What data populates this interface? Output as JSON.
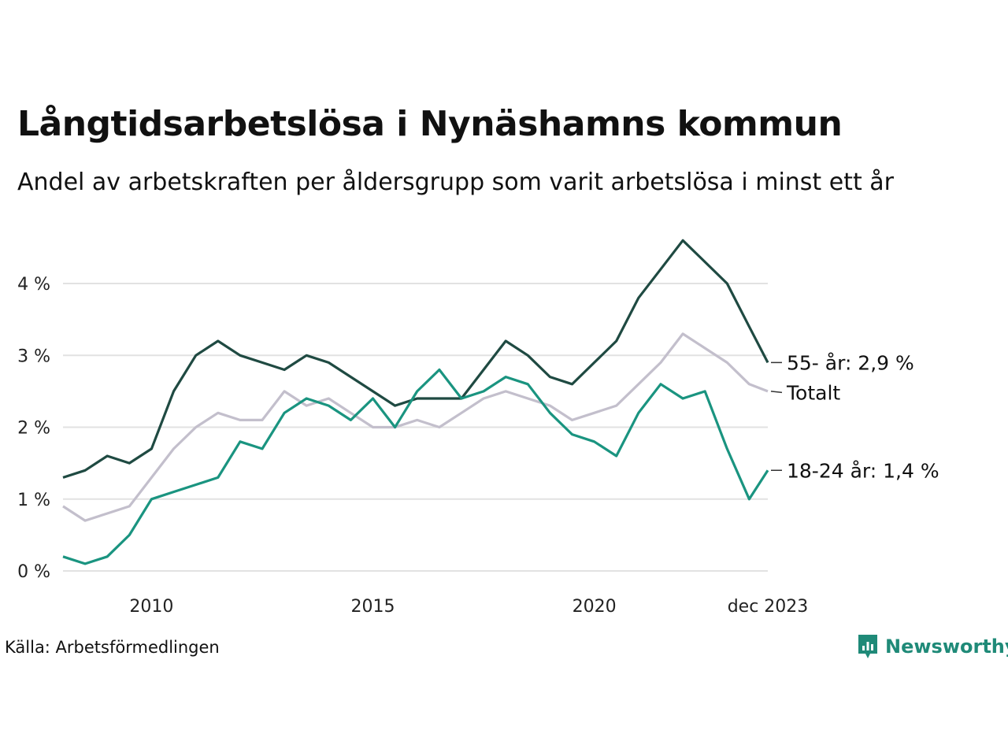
{
  "title": "Långtidsarbetslösa i Nynäshamns kommun",
  "subtitle": "Andel av arbetskraften per åldersgrupp som varit arbetslösa i minst ett år",
  "source": "Källa: Arbetsförmedlingen",
  "brand": "Newsworthy",
  "colors": {
    "series_55": "#1f4a42",
    "series_total": "#c3bfcc",
    "series_18_24": "#1a9480",
    "grid": "#e2e2e2",
    "brand": "#1f8a78"
  },
  "chart_data": {
    "type": "line",
    "title": "Långtidsarbetslösa i Nynäshamns kommun",
    "xlabel": "",
    "ylabel": "",
    "xlim": [
      2008.0,
      2023.92
    ],
    "ylim": [
      0,
      4.5
    ],
    "y_ticks": [
      0,
      1,
      2,
      3,
      4
    ],
    "y_tick_labels": [
      "0 %",
      "1 %",
      "2 %",
      "3 %",
      "4 %"
    ],
    "x_ticks": [
      2010,
      2015,
      2020,
      2023.92
    ],
    "x_tick_labels": [
      "2010",
      "2015",
      "2020",
      "dec 2023"
    ],
    "series": [
      {
        "name": "Totalt",
        "label": "Totalt",
        "color": "#c3bfcc",
        "x": [
          2008.0,
          2008.5,
          2009.0,
          2009.5,
          2010.0,
          2010.5,
          2011.0,
          2011.5,
          2012.0,
          2012.5,
          2013.0,
          2013.5,
          2014.0,
          2014.5,
          2015.0,
          2015.5,
          2016.0,
          2016.5,
          2017.0,
          2017.5,
          2018.0,
          2018.5,
          2019.0,
          2019.5,
          2020.0,
          2020.5,
          2021.0,
          2021.5,
          2022.0,
          2022.5,
          2023.0,
          2023.5,
          2023.92
        ],
        "values": [
          0.9,
          0.7,
          0.8,
          0.9,
          1.3,
          1.7,
          2.0,
          2.2,
          2.1,
          2.1,
          2.5,
          2.3,
          2.4,
          2.2,
          2.0,
          2.0,
          2.1,
          2.0,
          2.2,
          2.4,
          2.5,
          2.4,
          2.3,
          2.1,
          2.2,
          2.3,
          2.6,
          2.9,
          3.3,
          3.1,
          2.9,
          2.6,
          2.5
        ]
      },
      {
        "name": "55- år",
        "label": "55- år: 2,9 %",
        "color": "#1f4a42",
        "x": [
          2008.0,
          2008.5,
          2009.0,
          2009.5,
          2010.0,
          2010.5,
          2011.0,
          2011.5,
          2012.0,
          2012.5,
          2013.0,
          2013.5,
          2014.0,
          2014.5,
          2015.0,
          2015.5,
          2016.0,
          2016.5,
          2017.0,
          2017.5,
          2018.0,
          2018.5,
          2019.0,
          2019.5,
          2020.0,
          2020.5,
          2021.0,
          2021.5,
          2022.0,
          2022.5,
          2023.0,
          2023.5,
          2023.92
        ],
        "values": [
          1.3,
          1.4,
          1.6,
          1.5,
          1.7,
          2.5,
          3.0,
          3.2,
          3.0,
          2.9,
          2.8,
          3.0,
          2.9,
          2.7,
          2.5,
          2.3,
          2.4,
          2.4,
          2.4,
          2.8,
          3.2,
          3.0,
          2.7,
          2.6,
          2.9,
          3.2,
          3.8,
          4.2,
          4.6,
          4.3,
          4.0,
          3.4,
          2.9
        ]
      },
      {
        "name": "18-24 år",
        "label": "18-24 år: 1,4 %",
        "color": "#1a9480",
        "x": [
          2008.0,
          2008.5,
          2009.0,
          2009.5,
          2010.0,
          2010.5,
          2011.0,
          2011.5,
          2012.0,
          2012.5,
          2013.0,
          2013.5,
          2014.0,
          2014.5,
          2015.0,
          2015.5,
          2016.0,
          2016.5,
          2017.0,
          2017.5,
          2018.0,
          2018.5,
          2019.0,
          2019.5,
          2020.0,
          2020.5,
          2021.0,
          2021.5,
          2022.0,
          2022.5,
          2023.0,
          2023.5,
          2023.92
        ],
        "values": [
          0.2,
          0.1,
          0.2,
          0.5,
          1.0,
          1.1,
          1.2,
          1.3,
          1.8,
          1.7,
          2.2,
          2.4,
          2.3,
          2.1,
          2.4,
          2.0,
          2.5,
          2.8,
          2.4,
          2.5,
          2.7,
          2.6,
          2.2,
          1.9,
          1.8,
          1.6,
          2.2,
          2.6,
          2.4,
          2.5,
          1.7,
          1.0,
          1.4
        ]
      }
    ]
  }
}
